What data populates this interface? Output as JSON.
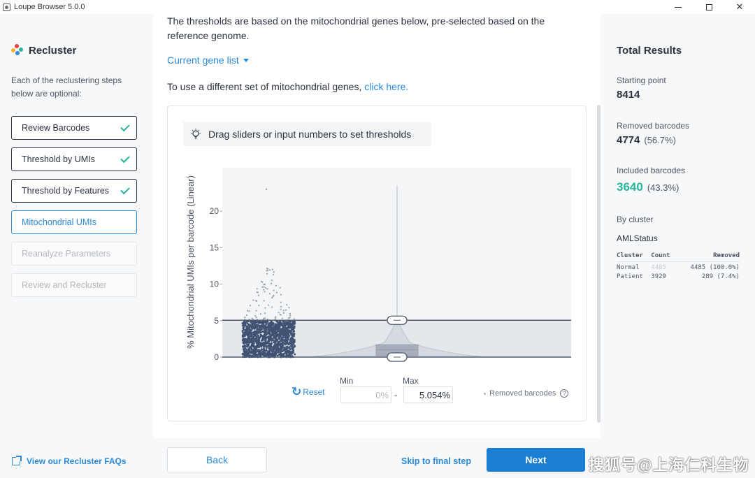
{
  "window": {
    "title": "Loupe Browser 5.0.0",
    "controls": {
      "minimize": "",
      "maximize": "",
      "close": "✕"
    }
  },
  "sidebar": {
    "title": "Recluster",
    "intro": "Each of the reclustering steps below are optional:",
    "steps": [
      {
        "label": "Review Barcodes",
        "state": "done"
      },
      {
        "label": "Threshold by UMIs",
        "state": "done"
      },
      {
        "label": "Threshold by Features",
        "state": "done"
      },
      {
        "label": "Mitochondrial UMIs",
        "state": "active"
      },
      {
        "label": "Reanalyze Parameters",
        "state": "disabled"
      },
      {
        "label": "Review and Recluster",
        "state": "disabled"
      }
    ],
    "faq_link": "View our Recluster FAQs"
  },
  "main": {
    "description": "The thresholds are based on the mitochondrial genes below, pre-selected based on the reference genome.",
    "gene_list_label": "Current gene list",
    "different_set_text": "To use a different set of mitochondrial genes,",
    "different_set_link": "click here.",
    "hint": "Drag sliders or input numbers to set thresholds",
    "controls": {
      "reset": "Reset",
      "min_label": "Min",
      "max_label": "Max",
      "min_value": "0%",
      "max_value": "5.054%",
      "dash": "-",
      "removed_legend": "Removed barcodes",
      "help_icon": "?"
    },
    "footer": {
      "back": "Back",
      "skip": "Skip to final step",
      "next": "Next"
    }
  },
  "chart_data": {
    "type": "scatter",
    "ylabel": "% Mitochondrial UMIs per barcode (Linear)",
    "xlabel": "",
    "yticks": [
      0,
      5,
      10,
      15,
      20
    ],
    "ylim": [
      0,
      25
    ],
    "thresholds": {
      "min": 0,
      "max": 5.054
    },
    "jitter_column": {
      "dense_max": 5,
      "sparse_max": 12.5,
      "outlier": 23
    },
    "violin": {
      "max": 23.5,
      "box_q1": 0.2,
      "box_median": 1.0,
      "box_q3": 1.7
    }
  },
  "right": {
    "title": "Total Results",
    "starting_point_label": "Starting point",
    "starting_point_value": "8414",
    "removed_label": "Removed barcodes",
    "removed_value": "4774",
    "removed_pct": "(56.7%)",
    "included_label": "Included barcodes",
    "included_value": "3640",
    "included_pct": "(43.3%)",
    "by_cluster_label": "By cluster",
    "cluster_group": "AMLStatus",
    "table": {
      "headers": [
        "Cluster",
        "Count",
        "Removed"
      ],
      "rows": [
        {
          "cluster": "Normal",
          "count": "4485",
          "removed": "4485 (100.0%)"
        },
        {
          "cluster": "Patient",
          "count": "3929",
          "removed": "289 (7.4%)"
        }
      ]
    }
  },
  "watermark": "搜狐号@上海仁科生物",
  "colors": {
    "accent": "#2a8ad8",
    "success": "#27b59b",
    "points": "#3f5273",
    "next_button": "#1a7fd3"
  }
}
